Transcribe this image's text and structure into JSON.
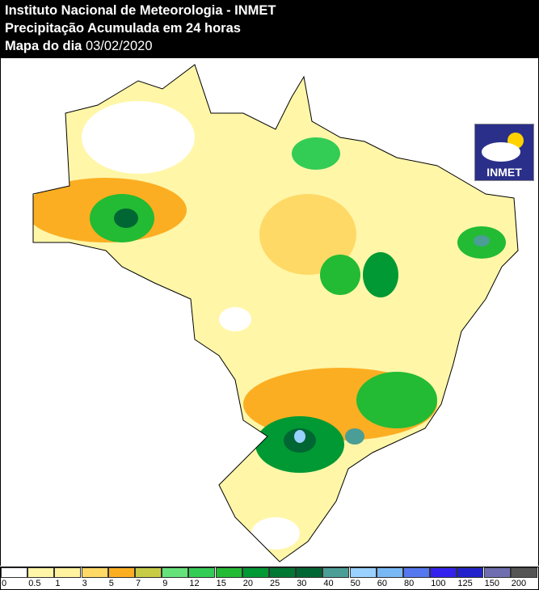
{
  "header": {
    "line1": "Instituto Nacional de Meteorologia - INMET",
    "line2": "Precipitação Acumulada em 24 horas",
    "line3_label": "Mapa do dia",
    "line3_date": "03/02/2020"
  },
  "logo": {
    "text": "INMET"
  },
  "legend": [
    {
      "label": "0",
      "color": "#ffffff"
    },
    {
      "label": "0.5",
      "color": "#fff6a8"
    },
    {
      "label": "1",
      "color": "#fff3a0"
    },
    {
      "label": "3",
      "color": "#ffd966"
    },
    {
      "label": "5",
      "color": "#fbae22"
    },
    {
      "label": "7",
      "color": "#c8cc45"
    },
    {
      "label": "9",
      "color": "#66e27a"
    },
    {
      "label": "12",
      "color": "#33cc55"
    },
    {
      "label": "15",
      "color": "#22bb33"
    },
    {
      "label": "20",
      "color": "#009933"
    },
    {
      "label": "25",
      "color": "#007733"
    },
    {
      "label": "30",
      "color": "#006633"
    },
    {
      "label": "40",
      "color": "#4a9e96"
    },
    {
      "label": "50",
      "color": "#99d1ff"
    },
    {
      "label": "60",
      "color": "#78b8f5"
    },
    {
      "label": "80",
      "color": "#5577f0"
    },
    {
      "label": "100",
      "color": "#3322ee"
    },
    {
      "label": "125",
      "color": "#2222cc"
    },
    {
      "label": "150",
      "color": "#6e6eb0"
    },
    {
      "label": "200",
      "color": "#555555"
    }
  ]
}
